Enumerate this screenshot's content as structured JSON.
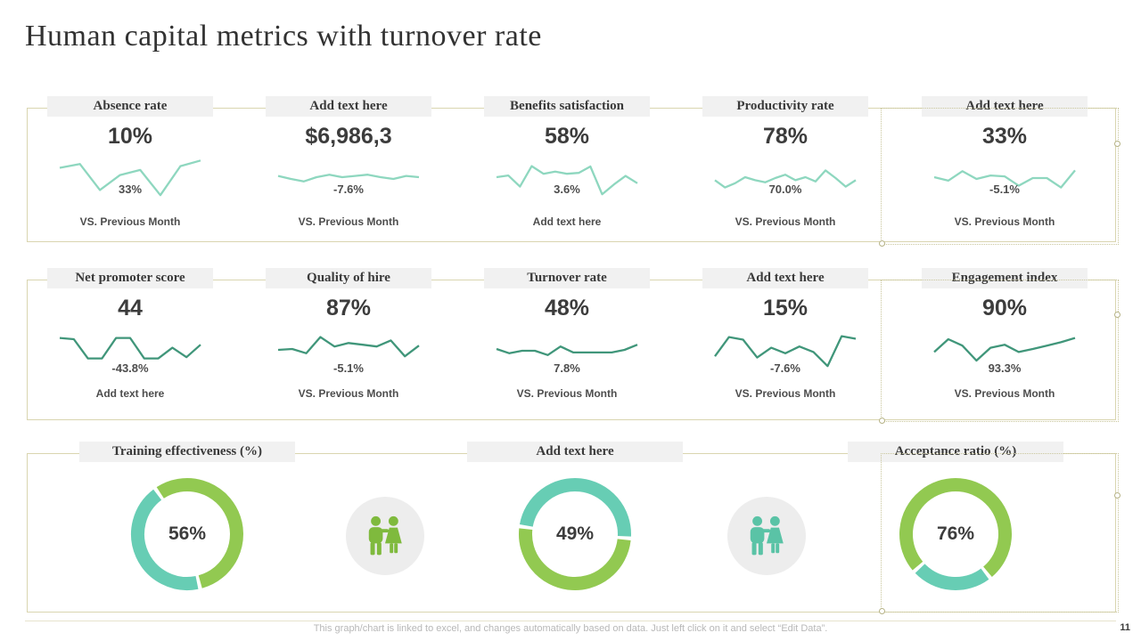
{
  "slide": {
    "title": "Human capital metrics with turnover rate",
    "page_number": "11",
    "footer_note": "This graph/chart is linked to excel, and changes automatically based on data. Just left click on it and select “Edit Data”."
  },
  "colors": {
    "row1_line": "#8ed7bf",
    "row2_line": "#40967a",
    "donut_green": "#92c951",
    "donut_teal": "#67cdb4",
    "people_green": "#7fba3d",
    "people_teal": "#5ac3a6",
    "box_border": "#d9d5b0",
    "tab_bg": "#f1f1f1"
  },
  "chart_data": {
    "type": "kpi-dashboard",
    "kpi_rows": [
      {
        "name": "row-1",
        "line_color": "#8ed7bf",
        "cards": [
          {
            "header": "Absence rate",
            "value": "10%",
            "delta": "33%",
            "caption": "VS. Previous Month",
            "type": "sparkline",
            "spark": [
              0.74,
              0.83,
              0.22,
              0.57,
              0.69,
              0.1,
              0.78,
              0.91
            ]
          },
          {
            "header": "Add text here",
            "value": "$6,986,3",
            "delta": "-7.6%",
            "caption": "VS. Previous Month",
            "type": "sparkline",
            "spark": [
              0.55,
              0.48,
              0.42,
              0.52,
              0.58,
              0.52,
              0.55,
              0.58,
              0.52,
              0.48,
              0.55,
              0.52
            ]
          },
          {
            "header": "Benefits satisfaction",
            "value": "58%",
            "delta": "3.6%",
            "caption": "Add text here",
            "type": "sparkline",
            "spark": [
              0.52,
              0.56,
              0.3,
              0.78,
              0.6,
              0.65,
              0.6,
              0.62,
              0.77,
              0.12,
              0.35,
              0.55,
              0.38
            ]
          },
          {
            "header": "Productivity rate",
            "value": "78%",
            "delta": "70.0%",
            "caption": "VS. Previous Month",
            "type": "sparkline",
            "spark": [
              0.45,
              0.28,
              0.38,
              0.52,
              0.45,
              0.4,
              0.5,
              0.58,
              0.45,
              0.52,
              0.42,
              0.68,
              0.5,
              0.3,
              0.45
            ]
          },
          {
            "header": "Add text here",
            "value": "33%",
            "delta": "-5.1%",
            "caption": "VS. Previous Month",
            "type": "sparkline",
            "spark": [
              0.52,
              0.44,
              0.66,
              0.48,
              0.56,
              0.54,
              0.32,
              0.5,
              0.5,
              0.28,
              0.68
            ]
          }
        ]
      },
      {
        "name": "row-2",
        "line_color": "#40967a",
        "cards": [
          {
            "header": "Net promoter score",
            "value": "44",
            "delta": "-43.8%",
            "caption": "Add text here",
            "type": "sparkline",
            "spark": [
              0.78,
              0.75,
              0.3,
              0.3,
              0.78,
              0.78,
              0.3,
              0.3,
              0.55,
              0.33,
              0.62
            ]
          },
          {
            "header": "Quality of hire",
            "value": "87%",
            "delta": "-5.1%",
            "caption": "VS. Previous Month",
            "type": "sparkline",
            "spark": [
              0.5,
              0.52,
              0.42,
              0.8,
              0.58,
              0.66,
              0.62,
              0.58,
              0.72,
              0.35,
              0.6
            ]
          },
          {
            "header": "Turnover rate",
            "value": "48%",
            "delta": "7.8%",
            "caption": "VS. Previous Month",
            "type": "sparkline",
            "spark": [
              0.52,
              0.42,
              0.48,
              0.48,
              0.38,
              0.58,
              0.44,
              0.44,
              0.44,
              0.44,
              0.5,
              0.62
            ]
          },
          {
            "header": "Add text here",
            "value": "15%",
            "delta": "-7.6%",
            "caption": "VS. Previous Month",
            "type": "sparkline",
            "spark": [
              0.35,
              0.8,
              0.74,
              0.32,
              0.55,
              0.42,
              0.58,
              0.45,
              0.12,
              0.82,
              0.76
            ]
          },
          {
            "header": "Engagement index",
            "value": "90%",
            "delta": "93.3%",
            "caption": "VS. Previous Month",
            "type": "sparkline",
            "spark": [
              0.45,
              0.75,
              0.6,
              0.25,
              0.55,
              0.62,
              0.45,
              0.52,
              0.6,
              0.68,
              0.78
            ]
          }
        ]
      }
    ],
    "donut_row": {
      "donuts": [
        {
          "header": "Training effectiveness (%)",
          "label": "56%",
          "value": 56,
          "type": "donut",
          "highlight_color": "#92c951",
          "rest_color": "#67cdb4",
          "start_angle": 325
        },
        {
          "header": "Add text here",
          "label": "49%",
          "value": 49,
          "type": "donut",
          "highlight_color": "#67cdb4",
          "rest_color": "#92c951",
          "start_angle": 278
        },
        {
          "header": "Acceptance ratio (%)",
          "label": "76%",
          "value": 76,
          "type": "donut",
          "highlight_color": "#92c951",
          "rest_color": "#67cdb4",
          "start_angle": 228
        }
      ],
      "people_icons": [
        {
          "name": "couple-icon-green",
          "color": "#7fba3d"
        },
        {
          "name": "couple-icon-teal",
          "color": "#5ac3a6"
        }
      ]
    }
  }
}
